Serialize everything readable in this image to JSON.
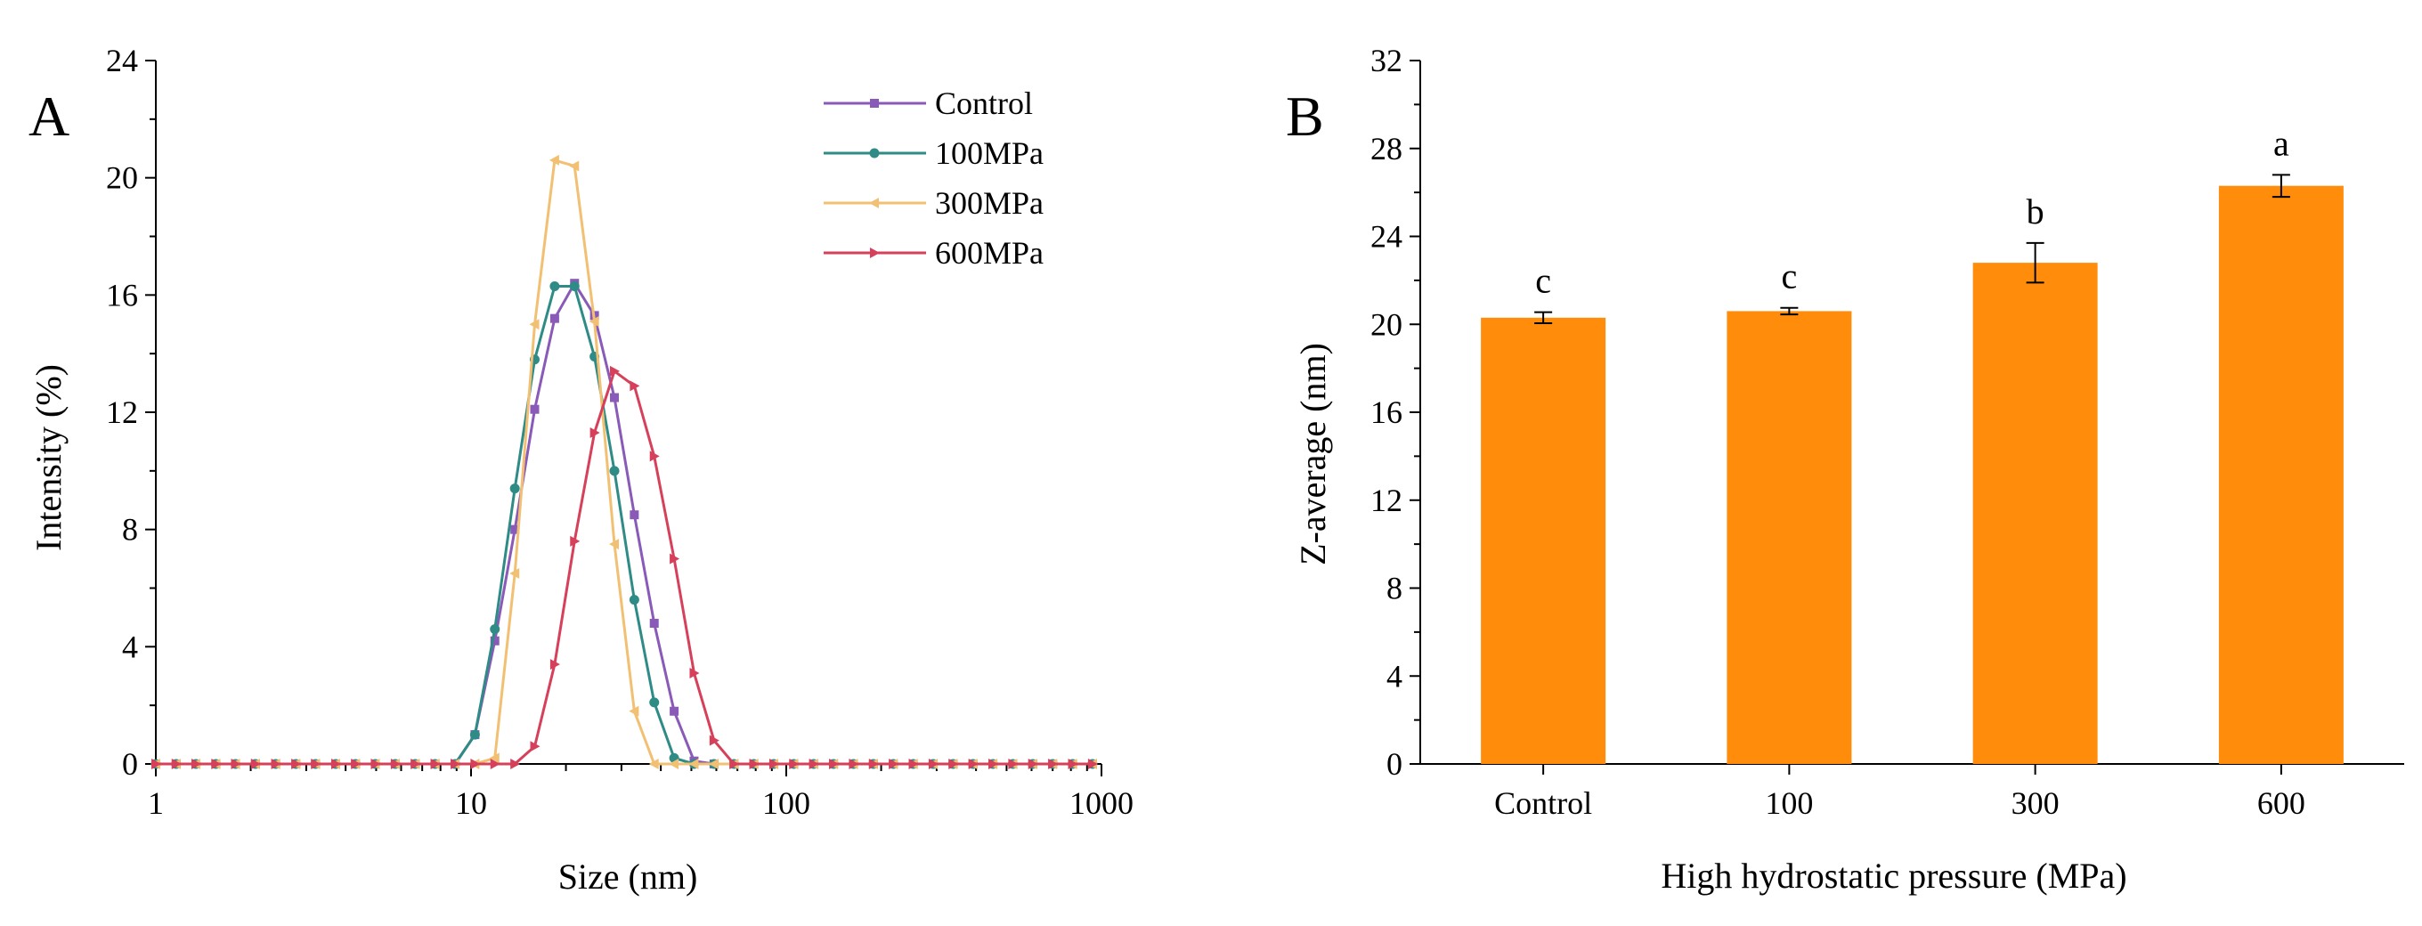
{
  "chart_data": [
    {
      "type": "line",
      "panel_label": "A",
      "xlabel": "Size (nm)",
      "ylabel": "Intensity (%)",
      "xscale": "log",
      "xlim": [
        1,
        1000
      ],
      "ylim": [
        0,
        24
      ],
      "xticks": [
        1,
        10,
        100,
        1000
      ],
      "xtick_labels": [
        "1",
        "10",
        "100",
        "1000"
      ],
      "yticks": [
        0,
        4,
        8,
        12,
        16,
        20,
        24
      ],
      "ytick_labels": [
        "0",
        "4",
        "8",
        "12",
        "16",
        "20",
        "24"
      ],
      "legend_position": "top-right",
      "x": [
        1.0,
        1.16,
        1.34,
        1.55,
        1.79,
        2.07,
        2.4,
        2.78,
        3.21,
        3.72,
        4.3,
        4.97,
        5.75,
        6.65,
        7.69,
        8.9,
        10.29,
        11.9,
        13.77,
        15.92,
        18.42,
        21.3,
        24.64,
        28.5,
        32.96,
        38.12,
        44.09,
        51.0,
        58.99,
        68.23,
        78.91,
        91.28,
        105.58,
        122.12,
        141.24,
        163.37,
        188.96,
        218.56,
        252.8,
        292.4,
        338.2,
        391.18,
        452.46,
        523.33,
        605.31,
        700.13,
        809.8,
        936.65
      ],
      "series": [
        {
          "name": "Control",
          "color": "#8a5ab8",
          "marker": "square",
          "values": [
            0,
            0,
            0,
            0,
            0,
            0,
            0,
            0,
            0,
            0,
            0,
            0,
            0,
            0,
            0,
            0,
            1.0,
            4.2,
            8.0,
            12.1,
            15.2,
            16.4,
            15.3,
            12.5,
            8.5,
            4.8,
            1.8,
            0.1,
            0,
            0,
            0,
            0,
            0,
            0,
            0,
            0,
            0,
            0,
            0,
            0,
            0,
            0,
            0,
            0,
            0,
            0,
            0,
            0
          ]
        },
        {
          "name": "100MPa",
          "color": "#2e8b86",
          "marker": "circle",
          "values": [
            0,
            0,
            0,
            0,
            0,
            0,
            0,
            0,
            0,
            0,
            0,
            0,
            0,
            0,
            0,
            0,
            1.0,
            4.6,
            9.4,
            13.8,
            16.3,
            16.3,
            13.9,
            10.0,
            5.6,
            2.1,
            0.2,
            0,
            0,
            0,
            0,
            0,
            0,
            0,
            0,
            0,
            0,
            0,
            0,
            0,
            0,
            0,
            0,
            0,
            0,
            0,
            0,
            0
          ]
        },
        {
          "name": "300MPa",
          "color": "#f2c073",
          "marker": "triangle-left",
          "values": [
            0,
            0,
            0,
            0,
            0,
            0,
            0,
            0,
            0,
            0,
            0,
            0,
            0,
            0,
            0,
            0,
            0,
            0.2,
            6.5,
            15.0,
            20.6,
            20.4,
            15.1,
            7.5,
            1.8,
            0,
            0,
            0,
            0,
            0,
            0,
            0,
            0,
            0,
            0,
            0,
            0,
            0,
            0,
            0,
            0,
            0,
            0,
            0,
            0,
            0,
            0,
            0
          ]
        },
        {
          "name": "600MPa",
          "color": "#d6405a",
          "marker": "triangle-right",
          "values": [
            0,
            0,
            0,
            0,
            0,
            0,
            0,
            0,
            0,
            0,
            0,
            0,
            0,
            0,
            0,
            0,
            0,
            0,
            0,
            0.6,
            3.4,
            7.6,
            11.3,
            13.4,
            12.9,
            10.5,
            7.0,
            3.1,
            0.8,
            0,
            0,
            0,
            0,
            0,
            0,
            0,
            0,
            0,
            0,
            0,
            0,
            0,
            0,
            0,
            0,
            0,
            0,
            0
          ]
        }
      ]
    },
    {
      "type": "bar",
      "panel_label": "B",
      "xlabel": "High hydrostatic pressure (MPa)",
      "ylabel": "Z-average (nm)",
      "ylim": [
        0,
        32
      ],
      "yticks": [
        0,
        4,
        8,
        12,
        16,
        20,
        24,
        28,
        32
      ],
      "ytick_labels": [
        "0",
        "4",
        "8",
        "12",
        "16",
        "20",
        "24",
        "28",
        "32"
      ],
      "categories": [
        "Control",
        "100",
        "300",
        "600"
      ],
      "values": [
        20.3,
        20.6,
        22.8,
        26.3
      ],
      "errors": [
        0.25,
        0.15,
        0.9,
        0.5
      ],
      "significance": [
        "c",
        "c",
        "b",
        "a"
      ],
      "bar_color": "#ff8c0a"
    }
  ]
}
